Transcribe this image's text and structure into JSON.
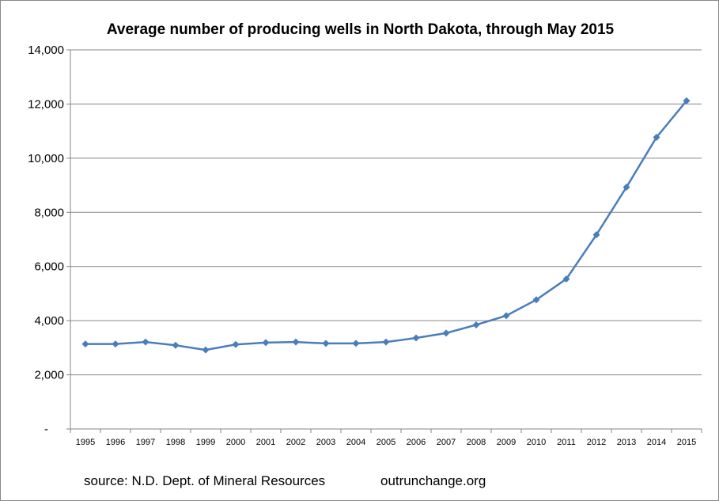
{
  "chart_data": {
    "type": "line",
    "title": "Average number of producing wells in North Dakota, through May 2015",
    "xlabel": "",
    "ylabel": "",
    "categories": [
      "1995",
      "1996",
      "1997",
      "1998",
      "1999",
      "2000",
      "2001",
      "2002",
      "2003",
      "2004",
      "2005",
      "2006",
      "2007",
      "2008",
      "2009",
      "2010",
      "2011",
      "2012",
      "2013",
      "2014",
      "2015"
    ],
    "series": [
      {
        "values": [
          3140,
          3140,
          3210,
          3090,
          2920,
          3120,
          3190,
          3210,
          3160,
          3160,
          3210,
          3360,
          3540,
          3845,
          4185,
          4770,
          5540,
          7170,
          8930,
          10770,
          12120
        ]
      }
    ],
    "ylim": [
      0,
      14000
    ],
    "yticks": [
      0,
      2000,
      4000,
      6000,
      8000,
      10000,
      12000,
      14000
    ],
    "ytick_labels": [
      "-",
      "2,000",
      "4,000",
      "6,000",
      "8,000",
      "10,000",
      "12,000",
      "14,000"
    ],
    "grid": true,
    "line_color": "#4a7ebb",
    "marker": "diamond",
    "footnotes": {
      "source": "source: N.D. Dept. of Mineral Resources",
      "site": "outrunchange.org"
    }
  }
}
